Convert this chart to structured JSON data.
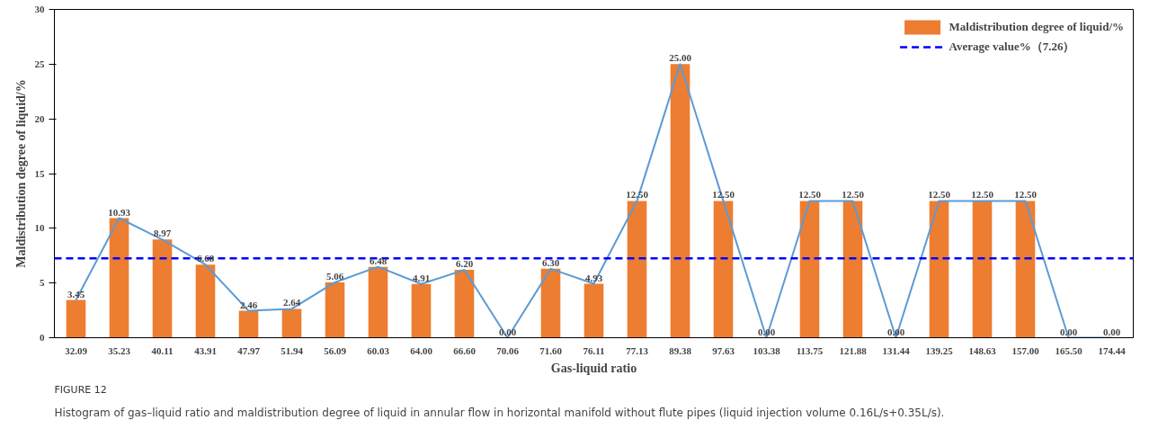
{
  "chart_data": {
    "type": "bar",
    "xlabel": "Gas-liquid ratio",
    "ylabel": "Maldistribution degree of liquid/%",
    "categories": [
      "32.09",
      "35.23",
      "40.11",
      "43.91",
      "47.97",
      "51.94",
      "56.09",
      "60.03",
      "64.00",
      "66.60",
      "70.06",
      "71.60",
      "76.11",
      "77.13",
      "89.38",
      "97.63",
      "103.38",
      "113.75",
      "121.88",
      "131.44",
      "139.25",
      "148.63",
      "157.00",
      "165.50",
      "174.44"
    ],
    "series": [
      {
        "name": "Maldistribution degree of liquid/%",
        "color": "#ed7d31",
        "values": [
          3.45,
          10.93,
          8.97,
          6.68,
          2.46,
          2.64,
          5.06,
          6.48,
          4.91,
          6.2,
          0.0,
          6.3,
          4.93,
          12.5,
          25.0,
          12.5,
          0.0,
          12.5,
          12.5,
          0.0,
          12.5,
          12.5,
          12.5,
          0.0,
          0.0
        ],
        "value_labels": [
          "3.45",
          "10.93",
          "8.97",
          "6.68",
          "2.46",
          "2.64",
          "5.06",
          "6.48",
          "4.91",
          "6.20",
          "0.00",
          "6.30",
          "4.93",
          "12.50",
          "25.00",
          "12.50",
          "0.00",
          "12.50",
          "12.50",
          "0.00",
          "12.50",
          "12.50",
          "12.50",
          "0.00",
          "0.00"
        ]
      },
      {
        "type": "line",
        "color": "#5b9bd5",
        "values": [
          3.45,
          10.93,
          8.97,
          6.68,
          2.46,
          2.64,
          5.06,
          6.48,
          4.91,
          6.2,
          0.0,
          6.3,
          4.93,
          12.5,
          25.0,
          12.5,
          0.0,
          12.5,
          12.5,
          0.0,
          12.5,
          12.5,
          12.5,
          0.0,
          0.0
        ]
      }
    ],
    "ylim": [
      0,
      30
    ],
    "yticks": [
      0,
      5,
      10,
      15,
      20,
      25,
      30
    ],
    "ref_lines": [
      {
        "axis": "y",
        "value": 7.26,
        "label": "Average value%（7.26）",
        "color": "#0000ff",
        "line_style": "dashed"
      }
    ],
    "legend": "top right",
    "grid": false,
    "annotations": [
      "FIGURE 12",
      "Histogram of gas–liquid ratio and maldistribution degree of liquid in annular flow in horizontal manifold without flute pipes (liquid injection volume 0.16L/s+0.35L/s)."
    ]
  }
}
